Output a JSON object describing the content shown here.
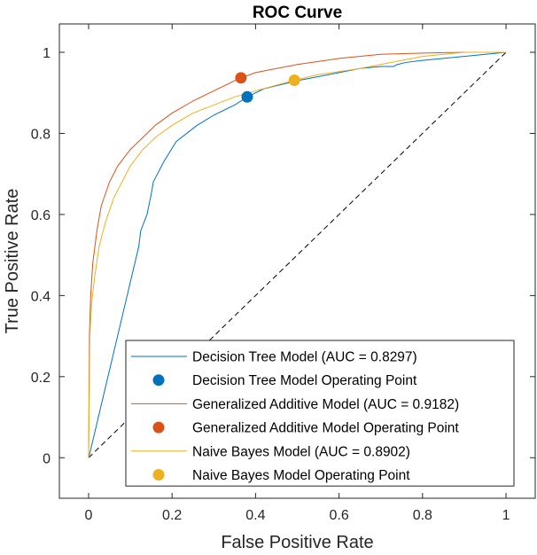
{
  "chart_data": {
    "type": "line",
    "title": "ROC Curve",
    "xlabel": "False Positive Rate",
    "ylabel": "True Positive Rate",
    "xlim": [
      -0.07,
      1.07
    ],
    "ylim": [
      -0.1,
      1.07
    ],
    "xticks": [
      0,
      0.2,
      0.4,
      0.6,
      0.8,
      1
    ],
    "yticks": [
      0,
      0.2,
      0.4,
      0.6,
      0.8,
      1
    ],
    "xtick_labels": [
      "0",
      "0.2",
      "0.4",
      "0.6",
      "0.8",
      "1"
    ],
    "ytick_labels": [
      "0",
      "0.2",
      "0.4",
      "0.6",
      "0.8",
      "1"
    ],
    "grid": false,
    "legend_position": "bottom-right",
    "series": [
      {
        "name": "Decision Tree Model (AUC = 0.8297)",
        "color": "#0072BD",
        "style": "solid",
        "x": [
          0,
          0.005,
          0.12,
          0.125,
          0.14,
          0.15,
          0.155,
          0.165,
          0.18,
          0.21,
          0.26,
          0.3,
          0.35,
          0.38,
          0.42,
          0.5,
          0.6,
          0.65,
          0.7,
          0.73,
          0.74,
          0.76,
          0.8,
          1
        ],
        "y": [
          0,
          0.02,
          0.52,
          0.56,
          0.6,
          0.65,
          0.68,
          0.7,
          0.73,
          0.78,
          0.82,
          0.845,
          0.87,
          0.89,
          0.91,
          0.93,
          0.95,
          0.96,
          0.965,
          0.965,
          0.97,
          0.975,
          0.98,
          1
        ]
      },
      {
        "name": "Decision Tree Model Operating Point",
        "color": "#0072BD",
        "style": "marker",
        "x": [
          0.38
        ],
        "y": [
          0.89
        ]
      },
      {
        "name": "Generalized Additive Model (AUC = 0.9182)",
        "color": "#D95319",
        "style": "solid",
        "x": [
          0,
          0.002,
          0.005,
          0.01,
          0.02,
          0.03,
          0.05,
          0.07,
          0.1,
          0.13,
          0.16,
          0.2,
          0.25,
          0.3,
          0.36,
          0.4,
          0.45,
          0.5,
          0.6,
          0.7,
          0.8,
          0.9,
          1
        ],
        "y": [
          0,
          0.3,
          0.4,
          0.48,
          0.56,
          0.62,
          0.68,
          0.72,
          0.76,
          0.79,
          0.82,
          0.85,
          0.88,
          0.905,
          0.935,
          0.95,
          0.96,
          0.97,
          0.985,
          0.995,
          0.998,
          1,
          1
        ]
      },
      {
        "name": "Generalized Additive Model Operating Point",
        "color": "#D95319",
        "style": "marker",
        "x": [
          0.365
        ],
        "y": [
          0.937
        ]
      },
      {
        "name": "Naive Bayes Model (AUC = 0.8902)",
        "color": "#EDB120",
        "style": "solid",
        "x": [
          0,
          0.003,
          0.007,
          0.015,
          0.025,
          0.04,
          0.06,
          0.08,
          0.1,
          0.13,
          0.16,
          0.2,
          0.25,
          0.3,
          0.35,
          0.4,
          0.49,
          0.55,
          0.65,
          0.75,
          0.8,
          0.9,
          1
        ],
        "y": [
          0,
          0.3,
          0.38,
          0.45,
          0.52,
          0.58,
          0.64,
          0.68,
          0.72,
          0.76,
          0.79,
          0.82,
          0.85,
          0.87,
          0.89,
          0.905,
          0.93,
          0.945,
          0.96,
          0.98,
          0.99,
          1,
          1
        ]
      },
      {
        "name": "Naive Bayes Model Operating Point",
        "color": "#EDB120",
        "style": "marker",
        "x": [
          0.493
        ],
        "y": [
          0.931
        ]
      }
    ],
    "reference_line": {
      "color": "#000000",
      "style": "dashed",
      "x": [
        0,
        1
      ],
      "y": [
        0,
        1
      ]
    }
  }
}
